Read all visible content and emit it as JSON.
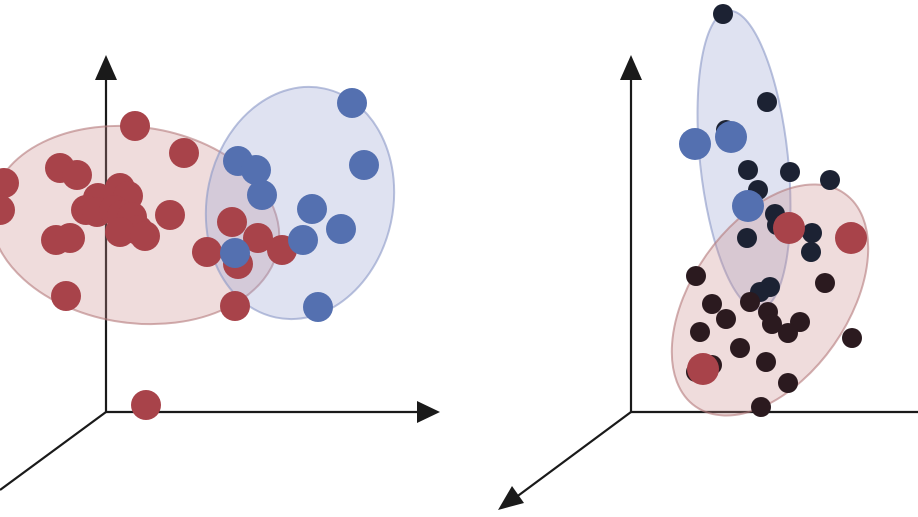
{
  "colors": {
    "background": "#ffffff",
    "axis": "#1a1a1a",
    "cluster_red": "#a8434a",
    "cluster_blue": "#5470b0",
    "dark_navy": "#1c2233",
    "dark_maroon": "#2b1a1f",
    "ellipse_red_fill": "#c98a8c",
    "ellipse_red_stroke": "#b47a7c",
    "ellipse_blue_fill": "#9aa6d4",
    "ellipse_blue_stroke": "#8a97c6"
  },
  "panels": [
    {
      "name": "left-panel",
      "clusters": [
        {
          "name": "red",
          "color_key": "cluster_red"
        },
        {
          "name": "blue",
          "color_key": "cluster_blue"
        }
      ]
    },
    {
      "name": "right-panel",
      "clusters": [
        {
          "name": "navy",
          "color_key": "dark_navy"
        },
        {
          "name": "maroon",
          "color_key": "dark_maroon"
        },
        {
          "name": "blue-highlight",
          "color_key": "cluster_blue"
        },
        {
          "name": "red-highlight",
          "color_key": "cluster_red"
        }
      ]
    }
  ]
}
